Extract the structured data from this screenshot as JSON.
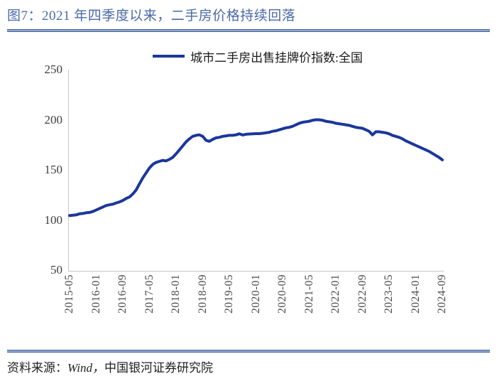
{
  "figure": {
    "title": "图7：2021 年四季度以来，二手房价格持续回落",
    "source_prefix": "资料来源：",
    "source_wind": "Wind，",
    "source_suffix": "中国银河证券研究院"
  },
  "chart_data": {
    "type": "line",
    "title": "图7：2021 年四季度以来，二手房价格持续回落",
    "legend": [
      "城市二手房出售挂牌价指数:全国"
    ],
    "legend_position": "top-center",
    "grid": false,
    "line_color": "#1b369c",
    "axis_color": "#c6c6c6",
    "title_color": "#4a69a8",
    "ylim": [
      50,
      250
    ],
    "yticks": [
      250,
      200,
      150,
      100,
      50
    ],
    "x_range": [
      "2015-05",
      "2024-09"
    ],
    "x_frequency": "monthly",
    "xtick_labels": [
      "2015-05",
      "2016-01",
      "2016-09",
      "2017-05",
      "2018-01",
      "2018-09",
      "2019-05",
      "2020-01",
      "2020-09",
      "2021-05",
      "2022-01",
      "2022-09",
      "2023-05",
      "2024-01",
      "2024-09"
    ],
    "series": [
      {
        "name": "城市二手房出售挂牌价指数:全国",
        "x": [
          "2015-05",
          "2015-06",
          "2015-07",
          "2015-08",
          "2015-09",
          "2015-10",
          "2015-11",
          "2015-12",
          "2016-01",
          "2016-02",
          "2016-03",
          "2016-04",
          "2016-05",
          "2016-06",
          "2016-07",
          "2016-08",
          "2016-09",
          "2016-10",
          "2016-11",
          "2016-12",
          "2017-01",
          "2017-02",
          "2017-03",
          "2017-04",
          "2017-05",
          "2017-06",
          "2017-07",
          "2017-08",
          "2017-09",
          "2017-10",
          "2017-11",
          "2017-12",
          "2018-01",
          "2018-02",
          "2018-03",
          "2018-04",
          "2018-05",
          "2018-06",
          "2018-07",
          "2018-08",
          "2018-09",
          "2018-10",
          "2018-11",
          "2018-12",
          "2019-01",
          "2019-02",
          "2019-03",
          "2019-04",
          "2019-05",
          "2019-06",
          "2019-07",
          "2019-08",
          "2019-09",
          "2019-10",
          "2019-11",
          "2019-12",
          "2020-01",
          "2020-02",
          "2020-03",
          "2020-04",
          "2020-05",
          "2020-06",
          "2020-07",
          "2020-08",
          "2020-09",
          "2020-10",
          "2020-11",
          "2020-12",
          "2021-01",
          "2021-02",
          "2021-03",
          "2021-04",
          "2021-05",
          "2021-06",
          "2021-07",
          "2021-08",
          "2021-09",
          "2021-10",
          "2021-11",
          "2021-12",
          "2022-01",
          "2022-02",
          "2022-03",
          "2022-04",
          "2022-05",
          "2022-06",
          "2022-07",
          "2022-08",
          "2022-09",
          "2022-10",
          "2022-11",
          "2022-12",
          "2023-01",
          "2023-02",
          "2023-03",
          "2023-04",
          "2023-05",
          "2023-06",
          "2023-07",
          "2023-08",
          "2023-09",
          "2023-10",
          "2023-11",
          "2023-12",
          "2024-01",
          "2024-02",
          "2024-03",
          "2024-04",
          "2024-05",
          "2024-06",
          "2024-07",
          "2024-08",
          "2024-09"
        ],
        "values": [
          104.5,
          104.8,
          105.2,
          106.2,
          106.5,
          107.2,
          107.5,
          108.5,
          110,
          111.5,
          113,
          114.5,
          115.2,
          115.8,
          117,
          118,
          119.5,
          121.5,
          123,
          126,
          130,
          136,
          142,
          147,
          152,
          155.5,
          157.5,
          158.5,
          159.5,
          159,
          160.5,
          162.5,
          166,
          170,
          174,
          178,
          181,
          183.5,
          184.5,
          185,
          183.5,
          179.5,
          178.5,
          180.5,
          182,
          182.5,
          183.5,
          184,
          184.5,
          184.5,
          185,
          186,
          184.8,
          185.5,
          185.8,
          186,
          186.2,
          186.2,
          186.5,
          187,
          187.5,
          188.5,
          189,
          190,
          191,
          192,
          192.5,
          193.5,
          195,
          196.5,
          197.5,
          198,
          198.5,
          199.5,
          200,
          200,
          199.5,
          198.5,
          198,
          197.5,
          196.5,
          196,
          195.5,
          195,
          194.5,
          193.5,
          192.5,
          192,
          191.5,
          190,
          188.5,
          185,
          188,
          188,
          187.5,
          187,
          186,
          184.5,
          183.5,
          182.5,
          181,
          179,
          177.5,
          176,
          174.5,
          173,
          171.5,
          170,
          168.5,
          166.5,
          164.5,
          162.5,
          160
        ]
      }
    ]
  }
}
